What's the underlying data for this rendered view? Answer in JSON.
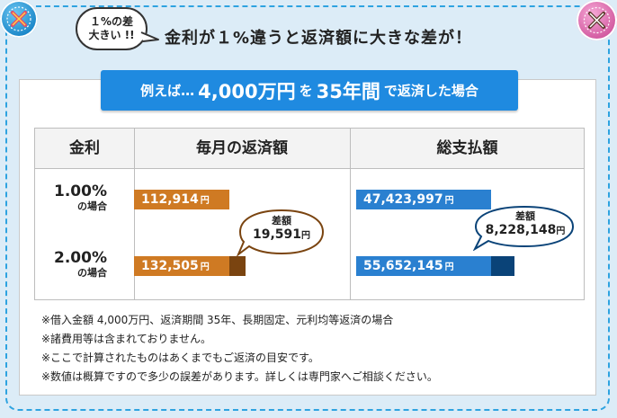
{
  "headline": {
    "bubble_line1": "１%の差",
    "bubble_line2": "大きい !!",
    "text": "金利が１%違うと返済額に大きな差が！"
  },
  "banner": {
    "prefix": "例えば…",
    "amount": "4,000万円",
    "mid": "を",
    "term": "35年間",
    "suffix": "で返済した場合"
  },
  "table": {
    "headers": {
      "rate": "金利",
      "monthly": "毎月の返済額",
      "total": "総支払額"
    }
  },
  "chart_data": {
    "type": "bar",
    "categories": [
      "1.00%",
      "2.00%"
    ],
    "category_sublabel": "の場合",
    "unit": "円",
    "series": [
      {
        "name": "毎月の返済額",
        "values": [
          112914,
          132505
        ],
        "labels": [
          "112,914",
          "132,505"
        ],
        "colors": [
          "#cf7a23",
          "#7a4410"
        ]
      },
      {
        "name": "総支払額",
        "values": [
          47423997,
          55652145
        ],
        "labels": [
          "47,423,997",
          "55,652,145"
        ],
        "colors": [
          "#2a80d0",
          "#0a4378"
        ]
      }
    ],
    "differences": {
      "label": "差額",
      "monthly": {
        "value": 19591,
        "text": "19,591"
      },
      "total": {
        "value": 8228148,
        "text": "8,228,148"
      }
    }
  },
  "notes": [
    "※借入金額 4,000万円、返済期間 35年、長期固定、元利均等返済の場合",
    "※諸費用等は含まれておりません。",
    "※ここで計算されたものはあくまでもご返済の目安です。",
    "※数値は概算ですので多少の誤差があります。詳しくは専門家へご相談ください。"
  ],
  "colors": {
    "frame": "#2ea3e0",
    "banner": "#1f8ae0",
    "monthly_base": "#cf7a23",
    "monthly_diff": "#7a4410",
    "total_base": "#2a80d0",
    "total_diff": "#0a4378"
  },
  "icons": {
    "top_left": "cross-stitch-button-icon",
    "top_right": "cross-stitch-button-icon"
  }
}
